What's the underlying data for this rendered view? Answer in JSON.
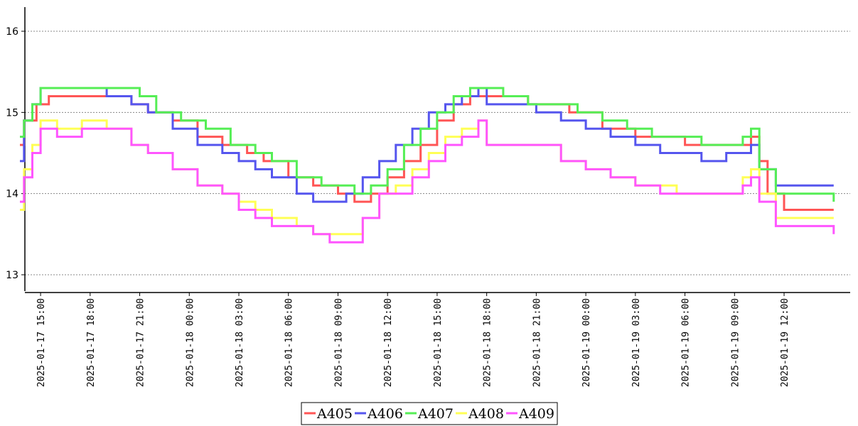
{
  "chart_data": {
    "type": "line",
    "title": "",
    "xlabel": "",
    "ylabel": "",
    "ylim": [
      12.9,
      16.3
    ],
    "y_ticks": [
      "13",
      "14",
      "15",
      "16"
    ],
    "x_ticks": [
      "2025-01-17  15:00",
      "2025-01-17  18:00",
      "2025-01-17  21:00",
      "2025-01-18  00:00",
      "2025-01-18  03:00",
      "2025-01-18  06:00",
      "2025-01-18  09:00",
      "2025-01-18  12:00",
      "2025-01-18  15:00",
      "2025-01-18  18:00",
      "2025-01-18  21:00",
      "2025-01-19  00:00",
      "2025-01-19  03:00",
      "2025-01-19  06:00",
      "2025-01-19  09:00",
      "2025-01-19  12:00"
    ],
    "x_range": [
      "2025-01-17 13:00",
      "2025-01-19 16:00"
    ],
    "grid": "horizontal dotted",
    "legend_position": "bottom-center",
    "series": [
      {
        "name": "A405",
        "color": "#ff5555",
        "x": [
          "2025-01-17 13:45",
          "2025-01-17 14:00",
          "2025-01-17 14:45",
          "2025-01-17 15:30",
          "2025-01-17 16:30",
          "2025-01-17 18:00",
          "2025-01-17 19:30",
          "2025-01-17 20:30",
          "2025-01-17 21:30",
          "2025-01-17 23:00",
          "2025-01-18 00:30",
          "2025-01-18 02:00",
          "2025-01-18 03:30",
          "2025-01-18 04:30",
          "2025-01-18 06:00",
          "2025-01-18 07:30",
          "2025-01-18 09:00",
          "2025-01-18 10:00",
          "2025-01-18 11:00",
          "2025-01-18 12:00",
          "2025-01-18 13:00",
          "2025-01-18 14:00",
          "2025-01-18 15:00",
          "2025-01-18 16:00",
          "2025-01-18 17:00",
          "2025-01-18 18:00",
          "2025-01-18 19:00",
          "2025-01-18 20:30",
          "2025-01-18 21:30",
          "2025-01-18 23:00",
          "2025-01-19 01:00",
          "2025-01-19 02:00",
          "2025-01-19 03:00",
          "2025-01-19 04:00",
          "2025-01-19 06:00",
          "2025-01-19 07:00",
          "2025-01-19 08:00",
          "2025-01-19 09:00",
          "2025-01-19 09:30",
          "2025-01-19 10:00",
          "2025-01-19 10:30",
          "2025-01-19 11:00",
          "2025-01-19 12:00",
          "2025-01-19 14:00",
          "2025-01-19 15:00"
        ],
        "y": [
          14.6,
          14.9,
          15.1,
          15.2,
          15.2,
          15.2,
          15.2,
          15.1,
          15.0,
          14.9,
          14.7,
          14.6,
          14.5,
          14.4,
          14.2,
          14.1,
          14.0,
          13.9,
          14.0,
          14.2,
          14.4,
          14.6,
          14.9,
          15.1,
          15.2,
          15.2,
          15.2,
          15.1,
          15.1,
          15.0,
          14.8,
          14.8,
          14.7,
          14.7,
          14.6,
          14.6,
          14.6,
          14.6,
          14.6,
          14.7,
          14.4,
          14.0,
          13.8,
          13.8,
          13.8
        ]
      },
      {
        "name": "A406",
        "color": "#5555ee",
        "x": [
          "2025-01-17 13:45",
          "2025-01-17 14:00",
          "2025-01-17 14:30",
          "2025-01-17 15:00",
          "2025-01-17 16:00",
          "2025-01-17 17:30",
          "2025-01-17 19:00",
          "2025-01-17 20:30",
          "2025-01-17 21:30",
          "2025-01-17 23:00",
          "2025-01-18 00:30",
          "2025-01-18 02:00",
          "2025-01-18 03:00",
          "2025-01-18 04:00",
          "2025-01-18 05:00",
          "2025-01-18 06:30",
          "2025-01-18 07:30",
          "2025-01-18 08:30",
          "2025-01-18 09:30",
          "2025-01-18 10:30",
          "2025-01-18 11:30",
          "2025-01-18 12:30",
          "2025-01-18 13:30",
          "2025-01-18 14:30",
          "2025-01-18 15:30",
          "2025-01-18 16:30",
          "2025-01-18 17:30",
          "2025-01-18 18:00",
          "2025-01-18 19:30",
          "2025-01-18 21:00",
          "2025-01-18 22:30",
          "2025-01-19 00:00",
          "2025-01-19 01:30",
          "2025-01-19 03:00",
          "2025-01-19 04:30",
          "2025-01-19 05:30",
          "2025-01-19 07:00",
          "2025-01-19 08:30",
          "2025-01-19 09:30",
          "2025-01-19 10:00",
          "2025-01-19 10:30",
          "2025-01-19 11:30",
          "2025-01-19 13:00",
          "2025-01-19 15:00"
        ],
        "y": [
          14.4,
          14.9,
          15.1,
          15.3,
          15.3,
          15.3,
          15.2,
          15.1,
          15.0,
          14.8,
          14.6,
          14.5,
          14.4,
          14.3,
          14.2,
          14.0,
          13.9,
          13.9,
          14.0,
          14.2,
          14.4,
          14.6,
          14.8,
          15.0,
          15.1,
          15.2,
          15.3,
          15.1,
          15.1,
          15.0,
          14.9,
          14.8,
          14.7,
          14.6,
          14.5,
          14.5,
          14.4,
          14.5,
          14.5,
          14.6,
          14.3,
          14.1,
          14.1,
          14.1
        ]
      },
      {
        "name": "A407",
        "color": "#55ee55",
        "x": [
          "2025-01-17 13:45",
          "2025-01-17 14:00",
          "2025-01-17 14:30",
          "2025-01-17 15:00",
          "2025-01-17 16:30",
          "2025-01-17 18:00",
          "2025-01-17 19:30",
          "2025-01-17 21:00",
          "2025-01-17 22:00",
          "2025-01-17 23:30",
          "2025-01-18 01:00",
          "2025-01-18 02:30",
          "2025-01-18 04:00",
          "2025-01-18 05:00",
          "2025-01-18 06:30",
          "2025-01-18 08:00",
          "2025-01-18 09:00",
          "2025-01-18 10:00",
          "2025-01-18 11:00",
          "2025-01-18 12:00",
          "2025-01-18 13:00",
          "2025-01-18 14:00",
          "2025-01-18 15:00",
          "2025-01-18 16:00",
          "2025-01-18 17:00",
          "2025-01-18 17:30",
          "2025-01-18 19:00",
          "2025-01-18 20:30",
          "2025-01-18 22:00",
          "2025-01-18 23:30",
          "2025-01-19 01:00",
          "2025-01-19 02:30",
          "2025-01-19 04:00",
          "2025-01-19 05:30",
          "2025-01-19 07:00",
          "2025-01-19 08:30",
          "2025-01-19 09:30",
          "2025-01-19 10:00",
          "2025-01-19 10:30",
          "2025-01-19 11:30",
          "2025-01-19 13:00",
          "2025-01-19 15:00"
        ],
        "y": [
          14.7,
          14.9,
          15.1,
          15.3,
          15.3,
          15.3,
          15.3,
          15.2,
          15.0,
          14.9,
          14.8,
          14.6,
          14.5,
          14.4,
          14.2,
          14.1,
          14.1,
          14.0,
          14.1,
          14.3,
          14.6,
          14.8,
          15.0,
          15.2,
          15.3,
          15.3,
          15.2,
          15.1,
          15.1,
          15.0,
          14.9,
          14.8,
          14.7,
          14.7,
          14.6,
          14.6,
          14.7,
          14.8,
          14.3,
          14.0,
          14.0,
          13.9
        ]
      },
      {
        "name": "A408",
        "color": "#ffff55",
        "x": [
          "2025-01-17 13:45",
          "2025-01-17 14:00",
          "2025-01-17 14:30",
          "2025-01-17 15:00",
          "2025-01-17 16:00",
          "2025-01-17 17:30",
          "2025-01-17 19:00",
          "2025-01-17 20:30",
          "2025-01-17 21:30",
          "2025-01-17 23:00",
          "2025-01-18 00:30",
          "2025-01-18 02:00",
          "2025-01-18 03:00",
          "2025-01-18 04:00",
          "2025-01-18 05:00",
          "2025-01-18 06:30",
          "2025-01-18 07:30",
          "2025-01-18 08:30",
          "2025-01-18 09:30",
          "2025-01-18 10:30",
          "2025-01-18 11:30",
          "2025-01-18 12:30",
          "2025-01-18 13:30",
          "2025-01-18 14:30",
          "2025-01-18 15:30",
          "2025-01-18 16:30",
          "2025-01-18 17:30",
          "2025-01-18 18:00",
          "2025-01-18 19:30",
          "2025-01-18 21:00",
          "2025-01-18 22:30",
          "2025-01-19 00:00",
          "2025-01-19 01:30",
          "2025-01-19 03:00",
          "2025-01-19 04:30",
          "2025-01-19 05:30",
          "2025-01-19 07:00",
          "2025-01-19 08:30",
          "2025-01-19 09:30",
          "2025-01-19 10:00",
          "2025-01-19 10:30",
          "2025-01-19 11:30",
          "2025-01-19 13:00",
          "2025-01-19 15:00"
        ],
        "y": [
          13.8,
          14.3,
          14.6,
          14.9,
          14.8,
          14.9,
          14.8,
          14.6,
          14.5,
          14.3,
          14.1,
          14.0,
          13.9,
          13.8,
          13.7,
          13.6,
          13.5,
          13.5,
          13.5,
          13.7,
          14.0,
          14.1,
          14.3,
          14.5,
          14.7,
          14.8,
          14.9,
          14.6,
          14.6,
          14.6,
          14.4,
          14.3,
          14.2,
          14.1,
          14.1,
          14.0,
          14.0,
          14.0,
          14.2,
          14.3,
          14.0,
          13.7,
          13.7,
          13.7
        ]
      },
      {
        "name": "A409",
        "color": "#ff55ff",
        "x": [
          "2025-01-17 13:45",
          "2025-01-17 14:00",
          "2025-01-17 14:30",
          "2025-01-17 15:00",
          "2025-01-17 16:00",
          "2025-01-17 17:30",
          "2025-01-17 19:00",
          "2025-01-17 20:30",
          "2025-01-17 21:30",
          "2025-01-17 23:00",
          "2025-01-18 00:30",
          "2025-01-18 02:00",
          "2025-01-18 03:00",
          "2025-01-18 04:00",
          "2025-01-18 05:00",
          "2025-01-18 06:30",
          "2025-01-18 07:30",
          "2025-01-18 08:30",
          "2025-01-18 09:30",
          "2025-01-18 10:30",
          "2025-01-18 11:30",
          "2025-01-18 12:30",
          "2025-01-18 13:30",
          "2025-01-18 14:30",
          "2025-01-18 15:30",
          "2025-01-18 16:30",
          "2025-01-18 17:30",
          "2025-01-18 18:00",
          "2025-01-18 19:30",
          "2025-01-18 21:00",
          "2025-01-18 22:30",
          "2025-01-19 00:00",
          "2025-01-19 01:30",
          "2025-01-19 03:00",
          "2025-01-19 04:30",
          "2025-01-19 05:30",
          "2025-01-19 07:00",
          "2025-01-19 08:30",
          "2025-01-19 09:30",
          "2025-01-19 10:00",
          "2025-01-19 10:30",
          "2025-01-19 11:30",
          "2025-01-19 13:00",
          "2025-01-19 15:00"
        ],
        "y": [
          13.9,
          14.2,
          14.5,
          14.8,
          14.7,
          14.8,
          14.8,
          14.6,
          14.5,
          14.3,
          14.1,
          14.0,
          13.8,
          13.7,
          13.6,
          13.6,
          13.5,
          13.4,
          13.4,
          13.7,
          14.0,
          14.0,
          14.2,
          14.4,
          14.6,
          14.7,
          14.9,
          14.6,
          14.6,
          14.6,
          14.4,
          14.3,
          14.2,
          14.1,
          14.0,
          14.0,
          14.0,
          14.0,
          14.1,
          14.2,
          13.9,
          13.6,
          13.6,
          13.5
        ]
      }
    ]
  }
}
